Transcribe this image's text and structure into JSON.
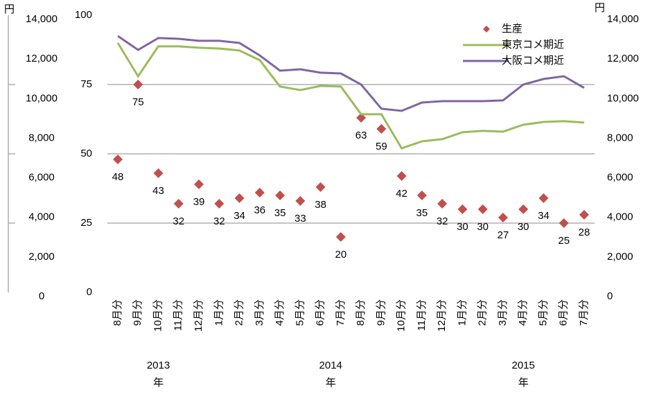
{
  "chart_data": {
    "type": "scatter-line",
    "categories": [
      "8月分",
      "9月分",
      "10月分",
      "11月分",
      "12月分",
      "1月分",
      "2月分",
      "3月分",
      "4月分",
      "5月分",
      "6月分",
      "7月分",
      "8月分",
      "9月分",
      "10月分",
      "11月分",
      "12月分",
      "1月分",
      "2月分",
      "3月分",
      "4月分",
      "5月分",
      "6月分",
      "7月分"
    ],
    "year_groups": [
      {
        "label": "2013",
        "unit": "年",
        "start": 0,
        "end": 4
      },
      {
        "label": "2014",
        "unit": "年",
        "start": 5,
        "end": 16
      },
      {
        "label": "2015",
        "unit": "年",
        "start": 17,
        "end": 23
      }
    ],
    "series": [
      {
        "name": "生産",
        "color": "#c0504d",
        "marker": "diamond",
        "values": [
          48,
          75,
          43,
          32,
          39,
          32,
          34,
          36,
          35,
          33,
          38,
          20,
          63,
          59,
          42,
          35,
          32,
          30,
          30,
          27,
          30,
          34,
          25,
          28
        ]
      },
      {
        "name": "東京コメ期近",
        "color": "#9bbb59",
        "axis": "y2",
        "values": [
          12600,
          10920,
          12430,
          12430,
          12360,
          12320,
          12220,
          11730,
          10400,
          10220,
          10430,
          10400,
          9000,
          9000,
          7280,
          7630,
          7740,
          8090,
          8160,
          8120,
          8470,
          8610,
          8650,
          8580
        ]
      },
      {
        "name": "大阪コメ期近",
        "color": "#8064a2",
        "axis": "y2",
        "values": [
          12950,
          12250,
          12850,
          12810,
          12710,
          12710,
          12600,
          11970,
          11200,
          11270,
          11100,
          11060,
          10500,
          9280,
          9170,
          9590,
          9660,
          9660,
          9660,
          9700,
          10500,
          10780,
          10920,
          10330
        ]
      }
    ],
    "ylim": [
      0,
      100
    ],
    "yticks": [
      0,
      25,
      50,
      75,
      100
    ],
    "y2lim": [
      0,
      14000
    ],
    "y2unit": "円",
    "y2ticks": [
      0,
      {
        "value": 2000,
        "label": "2,000"
      },
      {
        "value": 4000,
        "label": "4,000"
      },
      {
        "value": 6000,
        "label": "6,000"
      },
      {
        "value": 8000,
        "label": "8,000"
      },
      {
        "value": 10000,
        "label": "10,000"
      },
      {
        "value": 12000,
        "label": "12,000"
      },
      {
        "value": 14000,
        "label": "14,000"
      }
    ],
    "y3lim": [
      0,
      14000
    ],
    "y3unit": "円",
    "y3ticks": [
      0,
      {
        "value": 2000,
        "label": "2,000"
      },
      {
        "value": 4000,
        "label": "4,000"
      },
      {
        "value": 6000,
        "label": "6,000"
      },
      {
        "value": 8000,
        "label": "8,000"
      },
      {
        "value": 10000,
        "label": "10,000"
      },
      {
        "value": 12000,
        "label": "12,000"
      },
      {
        "value": 14000,
        "label": "14,000"
      }
    ],
    "grid": true,
    "legend": "top-right"
  }
}
